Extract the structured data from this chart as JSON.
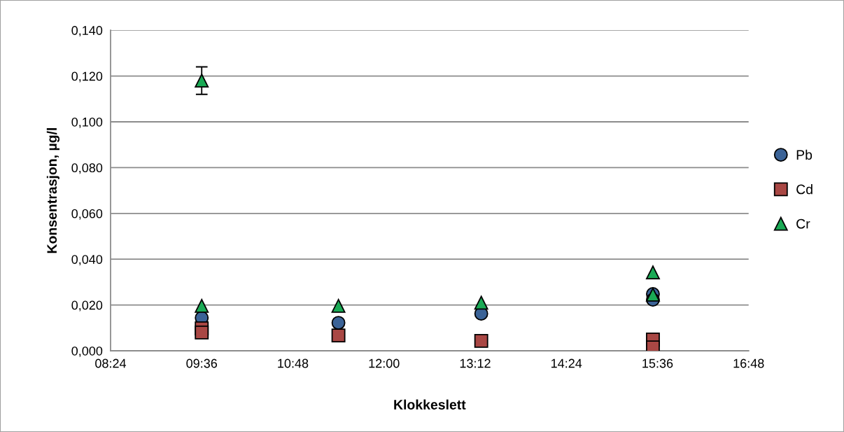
{
  "chart_data": {
    "type": "scatter",
    "xlabel": "Klokkeslett",
    "ylabel": "Konsentrasjon, µg/l",
    "xlim": [
      8.4,
      16.8
    ],
    "xticks": [
      {
        "value": 8.4,
        "label": "08:24"
      },
      {
        "value": 9.6,
        "label": "09:36"
      },
      {
        "value": 10.8,
        "label": "10:48"
      },
      {
        "value": 12.0,
        "label": "12:00"
      },
      {
        "value": 13.2,
        "label": "13:12"
      },
      {
        "value": 14.4,
        "label": "14:24"
      },
      {
        "value": 15.6,
        "label": "15:36"
      },
      {
        "value": 16.8,
        "label": "16:48"
      }
    ],
    "ylim": [
      0,
      0.14
    ],
    "yticks": [
      {
        "value": 0,
        "label": "0,000"
      },
      {
        "value": 0.02,
        "label": "0,020"
      },
      {
        "value": 0.04,
        "label": "0,040"
      },
      {
        "value": 0.06,
        "label": "0,060"
      },
      {
        "value": 0.08,
        "label": "0,080"
      },
      {
        "value": 0.1,
        "label": "0,100"
      },
      {
        "value": 0.12,
        "label": "0,120"
      },
      {
        "value": 0.14,
        "label": "0,140"
      }
    ],
    "grid": "y",
    "legend": "right",
    "series": [
      {
        "name": "Pb",
        "color": "#3b6397",
        "marker": "circle",
        "x": [
          9.6,
          11.4,
          13.28,
          15.54,
          15.54
        ],
        "values": [
          0.0144,
          0.0122,
          0.0162,
          0.0248,
          0.0223
        ]
      },
      {
        "name": "Cd",
        "color": "#a94744",
        "marker": "square",
        "x": [
          9.6,
          9.6,
          11.4,
          13.28,
          15.54,
          15.54
        ],
        "values": [
          0.0098,
          0.008,
          0.0067,
          0.0043,
          0.0049,
          0.0015
        ]
      },
      {
        "name": "Cr",
        "color": "#1aaa55",
        "marker": "triangle",
        "x": [
          9.6,
          9.6,
          11.4,
          13.28,
          15.54,
          15.54
        ],
        "values": [
          0.118,
          0.0196,
          0.0196,
          0.021,
          0.0342,
          0.0245
        ],
        "errors": [
          0.006,
          null,
          null,
          null,
          null,
          null
        ]
      }
    ]
  }
}
